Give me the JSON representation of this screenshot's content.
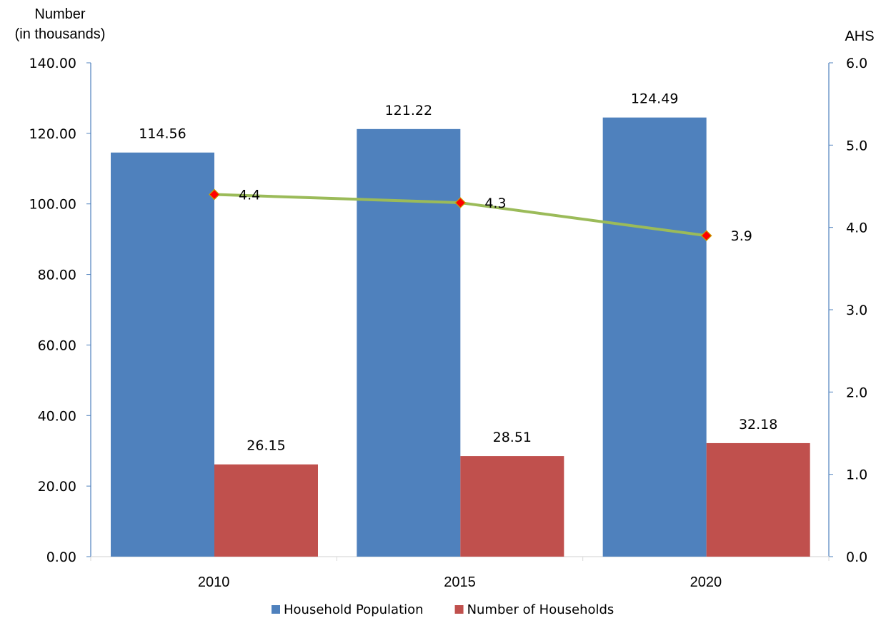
{
  "chart_data": {
    "type": "bar",
    "title": "",
    "categories": [
      "2010",
      "2015",
      "2020"
    ],
    "y_left": {
      "label_line1": "Number",
      "label_line2": "(in thousands)",
      "range": [
        0,
        140
      ],
      "ticks": [
        "0.00",
        "20.00",
        "40.00",
        "60.00",
        "80.00",
        "100.00",
        "120.00",
        "140.00"
      ]
    },
    "y_right": {
      "label": "AHS",
      "range": [
        0,
        6
      ],
      "ticks": [
        "0.0",
        "1.0",
        "2.0",
        "3.0",
        "4.0",
        "5.0",
        "6.0"
      ]
    },
    "series": [
      {
        "name": "Household Population",
        "type": "bar",
        "axis": "left",
        "color": "#4F81BD",
        "values": [
          114.56,
          121.22,
          124.49
        ],
        "labels": [
          "114.56",
          "121.22",
          "124.49"
        ]
      },
      {
        "name": "Number of Households",
        "type": "bar",
        "axis": "left",
        "color": "#C0504D",
        "values": [
          26.15,
          28.51,
          32.18
        ],
        "labels": [
          "26.15",
          "28.51",
          "32.18"
        ]
      },
      {
        "type": "line",
        "axis": "right",
        "color": "#9BBB59",
        "marker_color": "#FF0000",
        "values": [
          4.4,
          4.3,
          3.9
        ],
        "labels": [
          "4.4",
          "4.3",
          "3.9"
        ]
      }
    ],
    "legend_position": "bottom",
    "grid": false
  }
}
